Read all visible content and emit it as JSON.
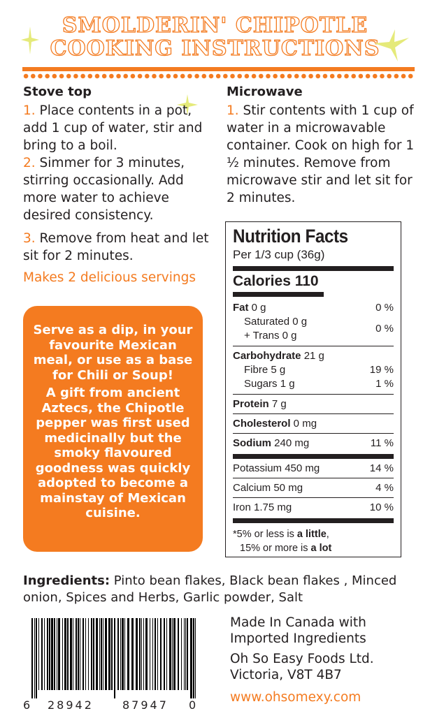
{
  "title": {
    "line1": "SMOLDERIN' CHIPOTLE",
    "line2": "COOKING INSTRUCTIONS"
  },
  "stovetop": {
    "heading": "Stove top",
    "steps": [
      {
        "n": "1.",
        "text": " Place contents in a pot, add 1 cup of water, stir and bring to a boil."
      },
      {
        "n": "2.",
        "text": " Simmer for 3 minutes, stirring occasionally. Add more water to achieve desired consistency."
      },
      {
        "n": "3.",
        "text": " Remove from heat and let sit for 2 minutes."
      }
    ],
    "servings": "Makes 2 delicious servings"
  },
  "microwave": {
    "heading": "Microwave",
    "steps": [
      {
        "n": "1.",
        "text": " Stir contents with 1 cup of water in a microwavable container. Cook on high for 1 ½ minutes. Remove from microwave stir and let sit for 2 minutes."
      }
    ]
  },
  "promo": {
    "p1": "Serve as a dip, in your favourite Mexican meal, or use as a base for Chili or Soup!",
    "p2": "A gift from ancient Aztecs, the Chipotle pepper was first used medicinally but the smoky flavoured goodness was quickly adopted to become a mainstay of Mexican cuisine."
  },
  "nutrition": {
    "title": "Nutrition Facts",
    "serving": "Per 1/3 cup (36g)",
    "calories": "Calories 110",
    "fat": {
      "label": "Fat",
      "amt": " 0 g",
      "dv": "0 %"
    },
    "saturated": "Saturated 0 g",
    "trans": "+ Trans 0 g",
    "sat_dv": "0 %",
    "carb": {
      "label": "Carbohydrate",
      "amt": " 21 g"
    },
    "fibre": {
      "label": "Fibre 5 g",
      "dv": "19 %"
    },
    "sugars": {
      "label": "Sugars 1 g",
      "dv": "1 %"
    },
    "protein": {
      "label": "Protein",
      "amt": " 7 g"
    },
    "cholesterol": {
      "label": "Cholesterol",
      "amt": " 0 mg"
    },
    "sodium": {
      "label": "Sodium",
      "amt": " 240 mg",
      "dv": "11 %"
    },
    "potassium": {
      "label": "Potassium 450 mg",
      "dv": "14 %"
    },
    "calcium": {
      "label": "Calcium 50 mg",
      "dv": "4 %"
    },
    "iron": {
      "label": "Iron 1.75 mg",
      "dv": "10 %"
    },
    "foot1a": "5% or less is ",
    "foot1b": "a little",
    "foot1c": ",",
    "foot2a": "15% or more is ",
    "foot2b": "a lot"
  },
  "ingredients": {
    "label": "Ingredients:",
    "text": " Pinto bean flakes, Black bean flakes , Minced onion, Spices and Herbs, Garlic powder, Salt"
  },
  "barcode": {
    "d1": "6",
    "d2": "28942",
    "d3": "87947",
    "d4": "0"
  },
  "company": {
    "l1": "Made In Canada with",
    "l2": "Imported Ingredients",
    "l3": "Oh So Easy Foods Ltd.",
    "l4": "Victoria, V8T 4B7",
    "url": "www.ohsomexy.com"
  }
}
